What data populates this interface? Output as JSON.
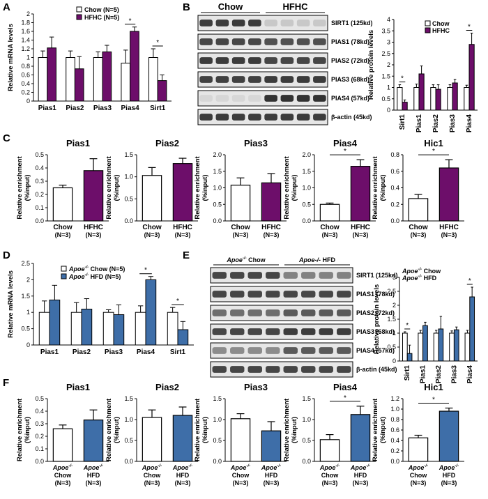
{
  "colors": {
    "purple": "#6d0e6a",
    "blue": "#3e6ea8",
    "white": "#ffffff",
    "black": "#000000"
  },
  "panels": {
    "A": {
      "letter": "A",
      "chart_data": {
        "type": "bar",
        "ylabel": "Relative mRNA levels",
        "categories": [
          "Pias1",
          "Pias2",
          "Pias3",
          "Pias4",
          "Sirt1"
        ],
        "ylim": [
          0,
          2
        ],
        "yticks": [
          "0",
          "0.2",
          "0.4",
          "0.6",
          "0.8",
          "1",
          "1.2",
          "1.4",
          "1.6",
          "1.8",
          "2"
        ],
        "series": [
          {
            "name": "Chow (N=5)",
            "color": "#ffffff",
            "values": [
              1,
              1,
              1,
              0.87,
              1
            ],
            "err": [
              0.15,
              0.15,
              0.13,
              0.3,
              0.2
            ]
          },
          {
            "name": "HFHC (N=5)",
            "color": "#6d0e6a",
            "values": [
              1.22,
              0.74,
              1.13,
              1.6,
              0.47
            ],
            "err": [
              0.25,
              0.28,
              0.15,
              0.1,
              0.13
            ]
          }
        ],
        "sig": [
          {
            "cat": 3,
            "label": "*"
          },
          {
            "cat": 4,
            "label": "*"
          }
        ]
      }
    },
    "B": {
      "letter": "B",
      "groups": [
        "Chow",
        "HFHC"
      ],
      "blots": [
        "SIRT1 (125kd)",
        "PIAS1 (78kd)",
        "PIAS2 (72kd)",
        "PIAS3 (68kd)",
        "PIAS4 (57kd)",
        "β-actin (45kd)"
      ],
      "chart_data": {
        "type": "bar",
        "ylabel": "Relative protein levels",
        "categories": [
          "Sirt1",
          "Pias1",
          "Pias2",
          "Pias3",
          "Pias4"
        ],
        "ylim": [
          0,
          4
        ],
        "yticks": [
          "0",
          "0.5",
          "1",
          "1.5",
          "2",
          "2.5",
          "3",
          "3.5",
          "4"
        ],
        "series": [
          {
            "name": "Chow",
            "color": "#ffffff",
            "values": [
              1,
              1,
              1,
              1,
              1
            ],
            "err": [
              0.12,
              0.15,
              0.12,
              0.12,
              0.1
            ]
          },
          {
            "name": "HFHC",
            "color": "#6d0e6a",
            "values": [
              0.35,
              1.6,
              0.92,
              1.2,
              2.9
            ],
            "err": [
              0.1,
              0.35,
              0.2,
              0.15,
              0.5
            ]
          }
        ],
        "sig": [
          {
            "cat": 0,
            "label": "*"
          },
          {
            "cat": 4,
            "label": "*"
          }
        ]
      }
    },
    "C": {
      "letter": "C",
      "chart_data": [
        {
          "type": "bar",
          "title": "Pias1",
          "ylabel": [
            "Relative enrichment",
            "(%input)"
          ],
          "categories": [
            [
              "Chow",
              "(N=3)"
            ],
            [
              "HFHC",
              "(N=3)"
            ]
          ],
          "ylim": [
            0,
            0.5
          ],
          "yticks": [
            "0.0",
            "0.1",
            "0.2",
            "0.3",
            "0.4",
            "0.5"
          ],
          "values": [
            0.25,
            0.38
          ],
          "err": [
            0.02,
            0.09
          ],
          "colors": [
            "#ffffff",
            "#6d0e6a"
          ],
          "sig": false
        },
        {
          "type": "bar",
          "title": "Pias2",
          "ylabel": [
            "Relative enrichment",
            "(%input)"
          ],
          "categories": [
            [
              "Chow",
              "(N=3)"
            ],
            [
              "HFHC",
              "(N=3)"
            ]
          ],
          "ylim": [
            0,
            1.5
          ],
          "yticks": [
            "0.0",
            "0.5",
            "1.0",
            "1.5"
          ],
          "values": [
            1.03,
            1.3
          ],
          "err": [
            0.18,
            0.12
          ],
          "colors": [
            "#ffffff",
            "#6d0e6a"
          ],
          "sig": false
        },
        {
          "type": "bar",
          "title": "Pias3",
          "ylabel": [
            "Relative enrichment",
            "(%input)"
          ],
          "categories": [
            [
              "Chow",
              "(N=3)"
            ],
            [
              "HFHC",
              "(N=3)"
            ]
          ],
          "ylim": [
            0,
            2.0
          ],
          "yticks": [
            "0.0",
            "0.5",
            "1.0",
            "1.5",
            "2.0"
          ],
          "values": [
            1.08,
            1.15
          ],
          "err": [
            0.22,
            0.28
          ],
          "colors": [
            "#ffffff",
            "#6d0e6a"
          ],
          "sig": false
        },
        {
          "type": "bar",
          "title": "Pias4",
          "ylabel": [
            "Relative enrichment",
            "(%input)"
          ],
          "categories": [
            [
              "Chow",
              "(N=3)"
            ],
            [
              "HFHC",
              "(N=3)"
            ]
          ],
          "ylim": [
            0,
            2.0
          ],
          "yticks": [
            "0.0",
            "0.5",
            "1.0",
            "1.5",
            "2.0"
          ],
          "values": [
            0.5,
            1.65
          ],
          "err": [
            0.04,
            0.2
          ],
          "colors": [
            "#ffffff",
            "#6d0e6a"
          ],
          "sig": "*"
        },
        {
          "type": "bar",
          "title": "Hic1",
          "ylabel": [
            "Relative enrichment",
            "(%input)"
          ],
          "categories": [
            [
              "Chow",
              "(N=3)"
            ],
            [
              "HFHC",
              "(N=3)"
            ]
          ],
          "ylim": [
            0,
            0.8
          ],
          "yticks": [
            "0.0",
            "0.2",
            "0.4",
            "0.6",
            "0.8"
          ],
          "values": [
            0.27,
            0.64
          ],
          "err": [
            0.05,
            0.1
          ],
          "colors": [
            "#ffffff",
            "#6d0e6a"
          ],
          "sig": "*"
        }
      ]
    },
    "D": {
      "letter": "D",
      "chart_data": {
        "type": "bar",
        "ylabel": "Relative mRNA levels",
        "categories": [
          "Pias1",
          "Pias2",
          "Pias3",
          "Pias4",
          "Sirt1"
        ],
        "ylim": [
          0,
          2.5
        ],
        "yticks": [
          "0",
          "0.5",
          "1",
          "1.5",
          "2",
          "2.5"
        ],
        "series": [
          {
            "name": "Apoe-/- Chow (N=5)",
            "prefix": "Apoe",
            "sup": "-/-",
            "suffix": " Chow (N=5)",
            "color": "#ffffff",
            "values": [
              1,
              1,
              1,
              1,
              1
            ],
            "err": [
              0.35,
              0.3,
              0.08,
              0.2,
              0.15
            ]
          },
          {
            "name": "Apoe-/- HFD (N=5)",
            "prefix": "Apoe",
            "sup": "-/-",
            "suffix": " HFD (N=5)",
            "color": "#3e6ea8",
            "values": [
              1.38,
              1.1,
              0.93,
              2.0,
              0.47
            ],
            "err": [
              0.45,
              0.32,
              0.3,
              0.1,
              0.25
            ]
          }
        ],
        "sig": [
          {
            "cat": 3,
            "label": "*"
          },
          {
            "cat": 4,
            "label": "*"
          }
        ]
      }
    },
    "E": {
      "letter": "E",
      "groups": [
        {
          "prefix": "Apoe",
          "sup": "-/-",
          "suffix": " Chow"
        },
        {
          "prefix": "Apoe-/-",
          "sup": "",
          "suffix": " HFD"
        }
      ],
      "blots": [
        "SIRT1 (125kd)",
        "PIAS1 (78kd)",
        "PIAS2 (72kd)",
        "PIAS3 (68kd)",
        "PIAS4 (57kd)",
        "β-actin (45kd)"
      ],
      "chart_data": {
        "type": "bar",
        "ylabel": "Relative protein levels",
        "categories": [
          "Sirt1",
          "Pias1",
          "Pias2",
          "Pias3",
          "Pias4"
        ],
        "ylim": [
          0,
          3
        ],
        "yticks": [
          "0",
          "0.5",
          "1",
          "1.5",
          "2",
          "2.5",
          "3"
        ],
        "series": [
          {
            "name": "Apoe-/- Chow",
            "prefix": "Apoe",
            "sup": "-/-",
            "suffix": " Chow",
            "color": "#ffffff",
            "values": [
              1,
              1,
              1,
              1,
              1
            ],
            "err": [
              0.05,
              0.1,
              0.1,
              0.08,
              0.1
            ]
          },
          {
            "name": "Apoe-/- HFD",
            "prefix": "Apoe",
            "sup": "-/-",
            "suffix": " HFD",
            "color": "#3e6ea8",
            "values": [
              0.27,
              1.27,
              1.15,
              1.12,
              2.3
            ],
            "err": [
              0.3,
              0.12,
              0.45,
              0.1,
              0.35
            ]
          }
        ],
        "sig": [
          {
            "cat": 0,
            "label": "*"
          },
          {
            "cat": 4,
            "label": "*"
          }
        ]
      }
    },
    "F": {
      "letter": "F",
      "chart_data": [
        {
          "type": "bar",
          "title": "Pias1",
          "ylabel": [
            "Relative enrichment",
            "(%input)"
          ],
          "categories": [
            [
              "Apoe-/-",
              "Chow",
              "(N=3)"
            ],
            [
              "Apoe-/-",
              "HFD",
              "(N=3)"
            ]
          ],
          "ylim": [
            0,
            0.5
          ],
          "yticks": [
            "0.0",
            "0.1",
            "0.2",
            "0.3",
            "0.4",
            "0.5"
          ],
          "values": [
            0.26,
            0.33
          ],
          "err": [
            0.03,
            0.08
          ],
          "colors": [
            "#ffffff",
            "#3e6ea8"
          ],
          "sig": false
        },
        {
          "type": "bar",
          "title": "Pias2",
          "ylabel": [
            "Relative enrichment",
            "(%input)"
          ],
          "categories": [
            [
              "Apoe-/-",
              "Chow",
              "(N=3)"
            ],
            [
              "Apoe-/-",
              "HFD",
              "(N=3)"
            ]
          ],
          "ylim": [
            0,
            1.5
          ],
          "yticks": [
            "0.0",
            "0.5",
            "1.0",
            "1.5"
          ],
          "values": [
            1.05,
            1.1
          ],
          "err": [
            0.18,
            0.2
          ],
          "colors": [
            "#ffffff",
            "#3e6ea8"
          ],
          "sig": false
        },
        {
          "type": "bar",
          "title": "Pias3",
          "ylabel": [
            "Relative enrichment",
            "(%input)"
          ],
          "categories": [
            [
              "Apoe-/-",
              "Chow",
              "(N=3)"
            ],
            [
              "Apoe-/-",
              "HFD",
              "(N=3)"
            ]
          ],
          "ylim": [
            0,
            1.5
          ],
          "yticks": [
            "0.0",
            "0.5",
            "1.0",
            "1.5"
          ],
          "values": [
            1.02,
            0.73
          ],
          "err": [
            0.12,
            0.22
          ],
          "colors": [
            "#ffffff",
            "#3e6ea8"
          ],
          "sig": false
        },
        {
          "type": "bar",
          "title": "Pias4",
          "ylabel": [
            "Relative enrichment",
            "(%input)"
          ],
          "categories": [
            [
              "Apoe-/-",
              "Chow",
              "(N=3)"
            ],
            [
              "Apoe-/-",
              "HFD",
              "(N=3)"
            ]
          ],
          "ylim": [
            0,
            1.5
          ],
          "yticks": [
            "0.0",
            "0.5",
            "1.0",
            "1.5"
          ],
          "values": [
            0.52,
            1.12
          ],
          "err": [
            0.12,
            0.2
          ],
          "colors": [
            "#ffffff",
            "#3e6ea8"
          ],
          "sig": "*"
        },
        {
          "type": "bar",
          "title": "Hic1",
          "ylabel": [
            "Relative enrichment",
            "(%input)"
          ],
          "categories": [
            [
              "Apoe-/-",
              "Chow",
              "(N=3)"
            ],
            [
              "Apoe-/-",
              "HFD",
              "(N=3)"
            ]
          ],
          "ylim": [
            0,
            1.2
          ],
          "yticks": [
            "0.0",
            "0.2",
            "0.4",
            "0.6",
            "0.8",
            "1.0",
            "1.2"
          ],
          "values": [
            0.45,
            0.96
          ],
          "err": [
            0.05,
            0.06
          ],
          "colors": [
            "#ffffff",
            "#3e6ea8"
          ],
          "sig": "*"
        }
      ]
    }
  }
}
